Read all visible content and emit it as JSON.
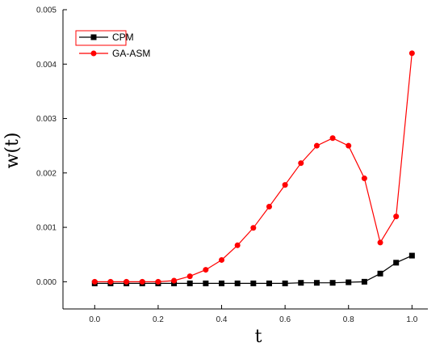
{
  "chart_data": {
    "type": "line",
    "title": "",
    "xlabel": "t",
    "ylabel": "w(t)",
    "xlim": [
      -0.1,
      1.05
    ],
    "ylim": [
      -0.0005,
      0.005
    ],
    "x_ticks": [
      0.0,
      0.2,
      0.4,
      0.6,
      0.8,
      1.0
    ],
    "x_tick_labels": [
      "0.0",
      "0.2",
      "0.4",
      "0.6",
      "0.8",
      "1.0"
    ],
    "y_ticks": [
      0.0,
      0.001,
      0.002,
      0.003,
      0.004,
      0.005
    ],
    "y_tick_labels": [
      "0.000",
      "0.001",
      "0.002",
      "0.003",
      "0.004",
      "0.005"
    ],
    "grid": false,
    "legend_position": "top-left",
    "x": [
      0.0,
      0.05,
      0.1,
      0.15,
      0.2,
      0.25,
      0.3,
      0.35,
      0.4,
      0.45,
      0.5,
      0.55,
      0.6,
      0.65,
      0.7,
      0.75,
      0.8,
      0.85,
      0.9,
      0.95,
      1.0
    ],
    "series": [
      {
        "name": "CPM",
        "color": "#000000",
        "marker": "square",
        "values": [
          -3e-05,
          -3e-05,
          -3e-05,
          -3e-05,
          -3e-05,
          -3e-05,
          -3e-05,
          -3e-05,
          -3e-05,
          -3e-05,
          -3e-05,
          -3e-05,
          -3e-05,
          -2e-05,
          -2e-05,
          -2e-05,
          -1e-05,
          0.0,
          0.00015,
          0.00035,
          0.00048
        ]
      },
      {
        "name": "GA-ASM",
        "color": "#ff0000",
        "marker": "circle",
        "values": [
          0.0,
          0.0,
          0.0,
          0.0,
          0.0,
          2e-05,
          0.0001,
          0.00022,
          0.0004,
          0.00067,
          0.00099,
          0.00138,
          0.00178,
          0.00218,
          0.0025,
          0.00264,
          0.0025,
          0.0019,
          0.00072,
          0.0012,
          0.0042
        ]
      }
    ]
  }
}
